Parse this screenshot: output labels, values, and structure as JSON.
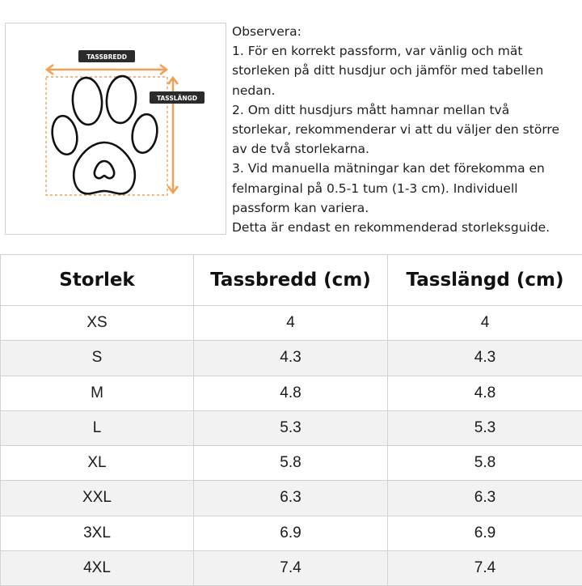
{
  "diagram": {
    "width_label": "TASSBREDD",
    "length_label": "TASSLÄNGD",
    "accent_color": "#f0a050",
    "label_bg": "#2b2b2b"
  },
  "notes": {
    "lines": [
      "Observera:",
      "1. För en korrekt passform, var vänlig och mät",
      "storleken på ditt husdjur och jämför med tabellen",
      "nedan.",
      "2. Om ditt husdjurs mått hamnar mellan två",
      "storlekar, rekommenderar vi att du väljer den större",
      "av de två storlekarna.",
      "3. Vid manuella mätningar kan det förekomma en",
      "felmarginal på 0.5-1 tum (1-3 cm). Individuell",
      "passform kan variera.",
      "Detta är endast en rekommenderad storleksguide."
    ]
  },
  "table": {
    "headers": [
      "Storlek",
      "Tassbredd (cm)",
      "Tasslängd (cm)"
    ],
    "rows": [
      [
        "XS",
        "4",
        "4"
      ],
      [
        "S",
        "4.3",
        "4.3"
      ],
      [
        "M",
        "4.8",
        "4.8"
      ],
      [
        "L",
        "5.3",
        "5.3"
      ],
      [
        "XL",
        "5.8",
        "5.8"
      ],
      [
        "XXL",
        "6.3",
        "6.3"
      ],
      [
        "3XL",
        "6.9",
        "6.9"
      ],
      [
        "4XL",
        "7.4",
        "7.4"
      ]
    ]
  }
}
